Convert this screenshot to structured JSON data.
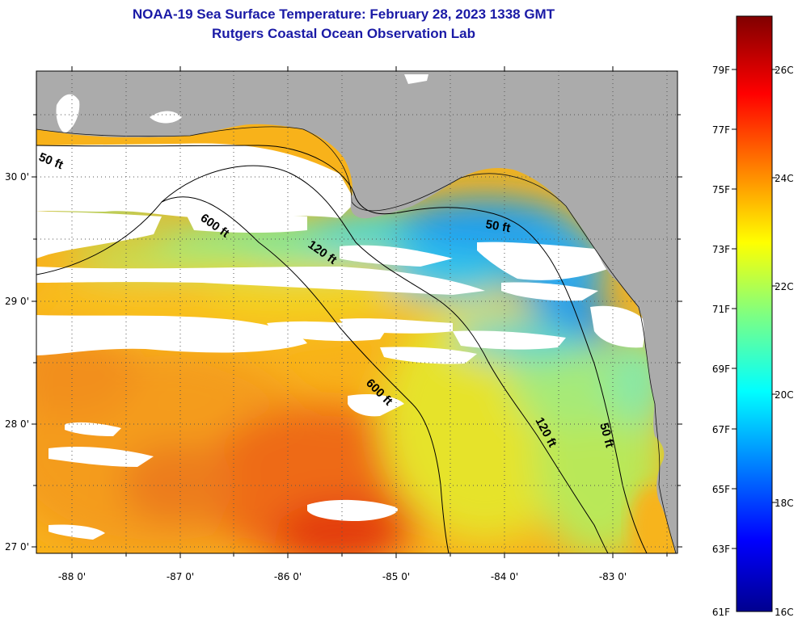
{
  "title": {
    "line1": "NOAA-19 Sea Surface Temperature:  February 28, 2023 1338 GMT",
    "line2": "Rutgers Coastal Ocean Observation Lab"
  },
  "map": {
    "lat_labels": [
      "30 0'",
      "29 0'",
      "28 0'",
      "27 0'"
    ],
    "lon_labels": [
      "-88 0'",
      "-87 0'",
      "-86 0'",
      "-85 0'",
      "-84 0'",
      "-83 0'"
    ],
    "isobath_labels": [
      "50 ft",
      "600 ft",
      "120 ft",
      "50 ft",
      "600 ft",
      "120 ft",
      "50 ft"
    ],
    "colors": {
      "land": "#ababab",
      "cloud": "#ffffff"
    }
  },
  "colorbar": {
    "f_labels": [
      "79F",
      "77F",
      "75F",
      "73F",
      "71F",
      "69F",
      "67F",
      "65F",
      "63F",
      "61F"
    ],
    "c_labels": [
      "26C",
      "24C",
      "22C",
      "20C",
      "18C",
      "16C"
    ],
    "range_c": [
      16,
      27
    ]
  }
}
